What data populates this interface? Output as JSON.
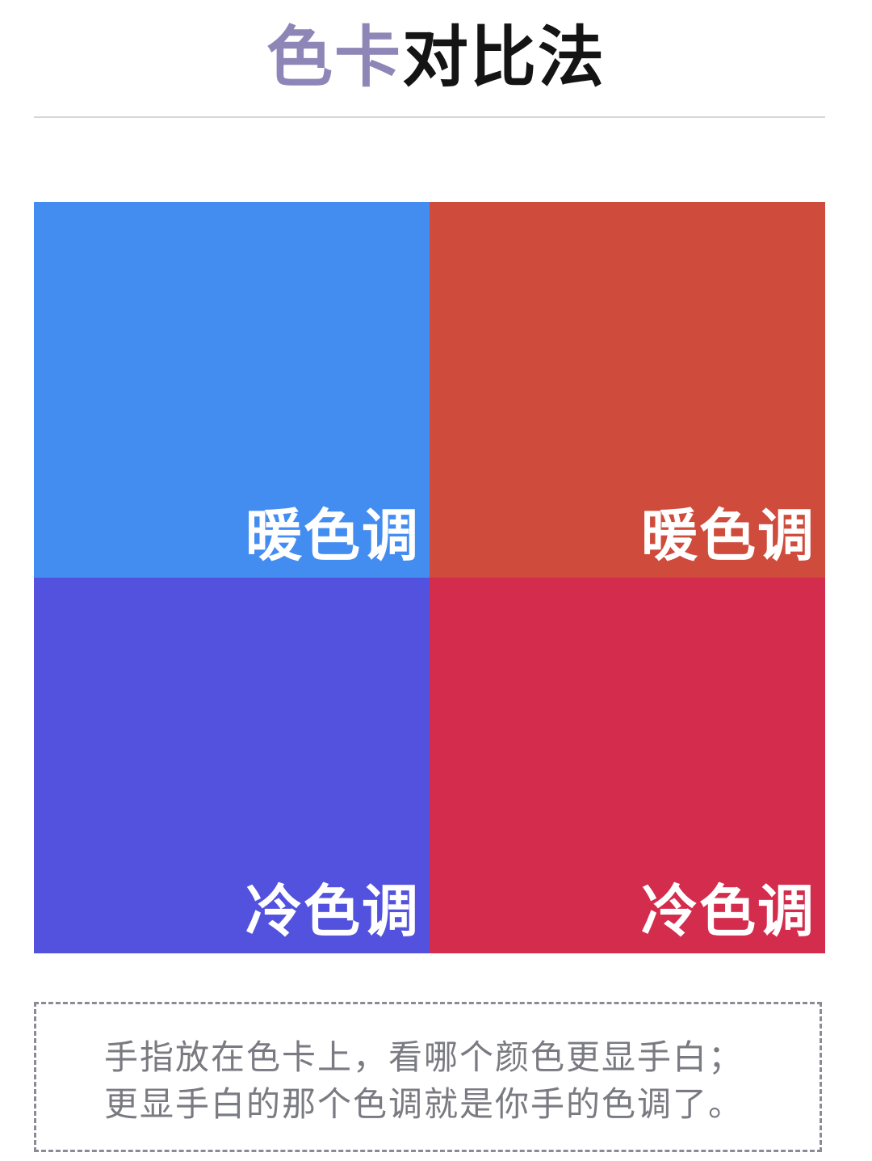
{
  "header": {
    "title_accent": "色卡",
    "title_main": "对比法"
  },
  "cards": [
    {
      "label": "暖色调",
      "color": "#448df0"
    },
    {
      "label": "暖色调",
      "color": "#cf4b3c"
    },
    {
      "label": "冷色调",
      "color": "#5352de"
    },
    {
      "label": "冷色调",
      "color": "#d32c4d"
    }
  ],
  "note": {
    "line1": "手指放在色卡上，看哪个颜色更显手白；",
    "line2": "更显手白的那个色调就是你手的色调了。"
  }
}
